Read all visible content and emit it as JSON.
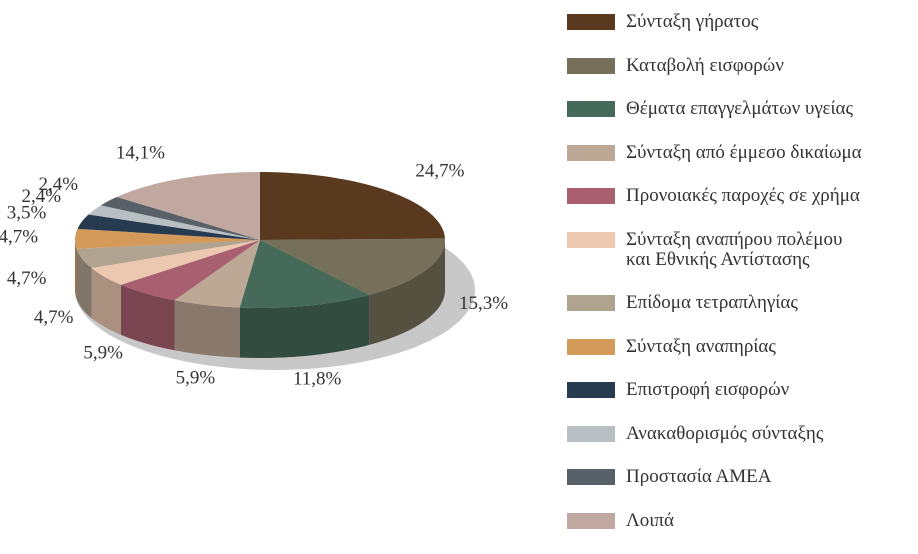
{
  "chart_data": {
    "type": "pie",
    "categories": [
      "Σύνταξη γήρατος",
      "Καταβολή εισφορών",
      "Θέματα επαγγελμάτων υγείας",
      "Σύνταξη από έμμεσο δικαίωμα",
      "Προνοιακές παροχές σε χρήμα",
      "Σύνταξη αναπήρου πολέμου\nκαι Εθνικής Αντίστασης",
      "Επίδομα τετραπληγίας",
      "Σύνταξη αναπηρίας",
      "Επιστροφή εισφορών",
      "Ανακαθορισμός σύνταξης",
      "Προστασία ΑΜΕΑ",
      "Λοιπά"
    ],
    "values": [
      24.7,
      15.3,
      11.8,
      5.9,
      5.9,
      4.7,
      4.7,
      4.7,
      3.5,
      2.4,
      2.4,
      14.1
    ],
    "value_labels": [
      "24,7%",
      "15,3%",
      "11,8%",
      "5,9%",
      "5,9%",
      "4,7%",
      "4,7%",
      "4,7%",
      "3,5%",
      "2,4%",
      "2,4%",
      "14,1%"
    ],
    "colors": [
      "#5a3a1e",
      "#76705a",
      "#456a5a",
      "#bda896",
      "#a86070",
      "#ecc8b0",
      "#b0a490",
      "#d49a5a",
      "#263a50",
      "#b8c0c4",
      "#586068",
      "#c0a8a0"
    ],
    "legend": "right"
  }
}
